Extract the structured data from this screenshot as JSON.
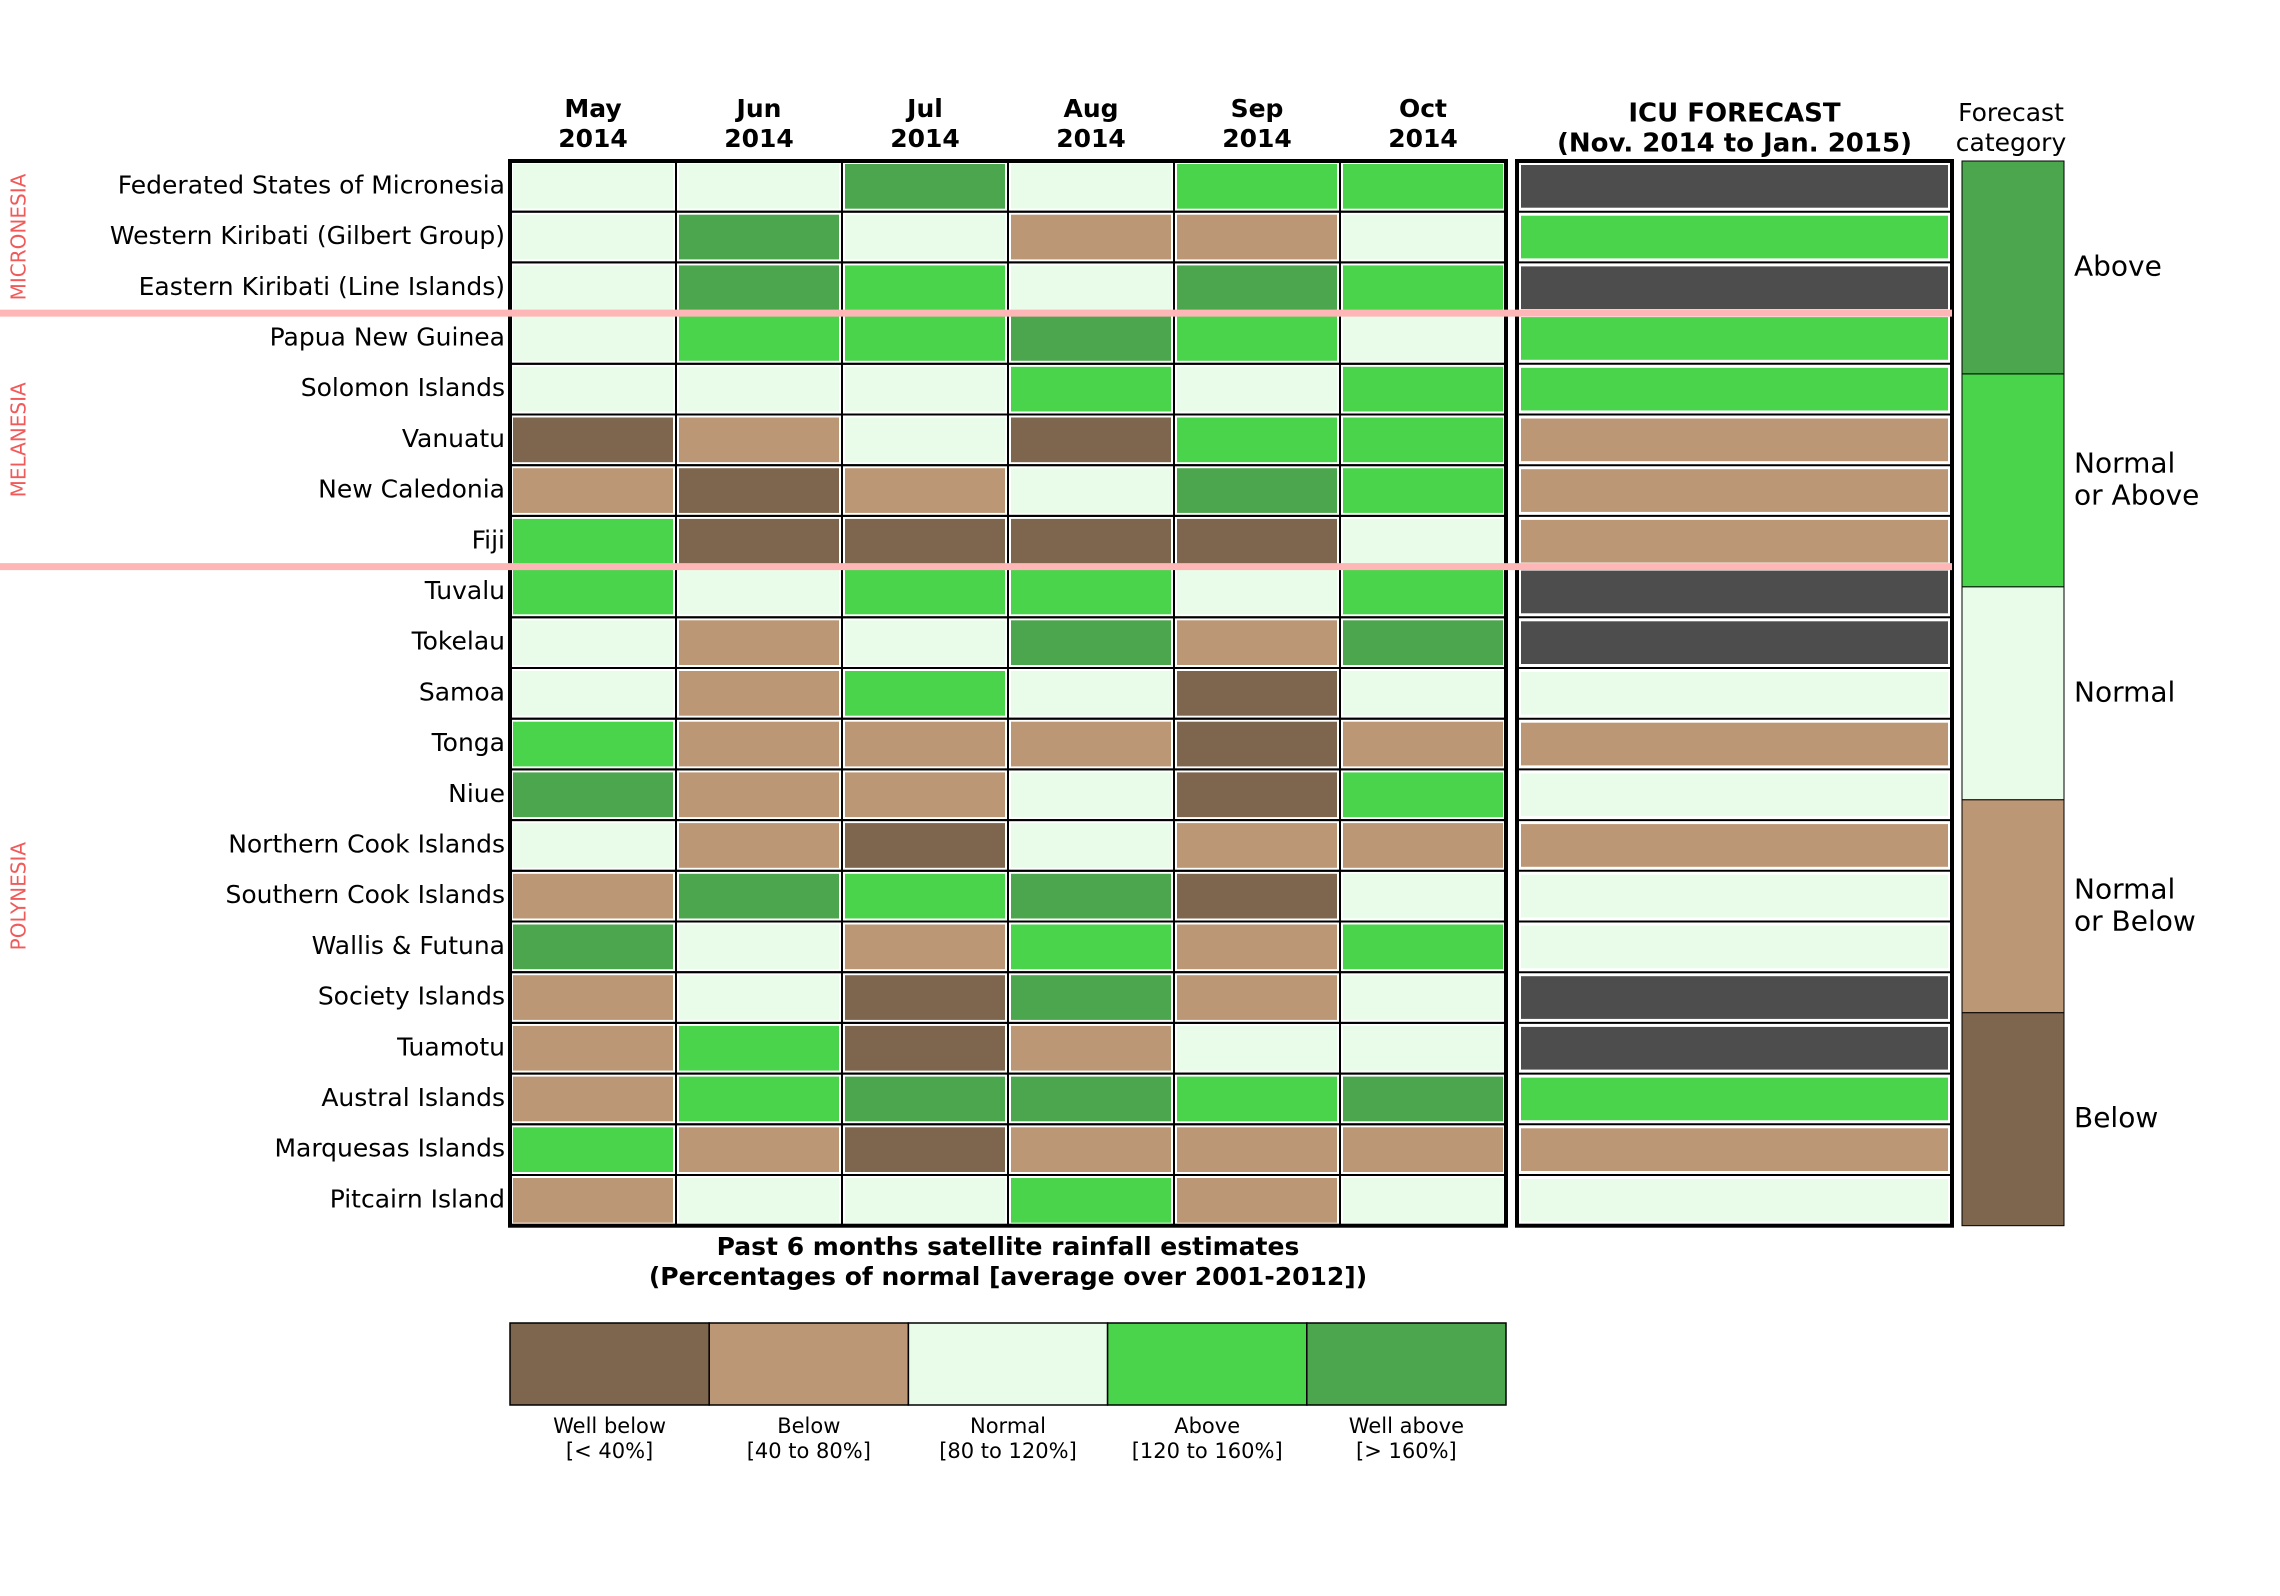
{
  "chart_data": {
    "type": "heatmap",
    "columns": [
      {
        "month": "May",
        "year": "2014"
      },
      {
        "month": "Jun",
        "year": "2014"
      },
      {
        "month": "Jul",
        "year": "2014"
      },
      {
        "month": "Aug",
        "year": "2014"
      },
      {
        "month": "Sep",
        "year": "2014"
      },
      {
        "month": "Oct",
        "year": "2014"
      }
    ],
    "forecast_title": [
      "ICU FORECAST",
      "(Nov. 2014 to Jan. 2015)"
    ],
    "forecast_category_title": [
      "Forecast",
      "category"
    ],
    "regions": [
      {
        "name": "MICRONESIA",
        "rows": [
          0,
          2
        ]
      },
      {
        "name": "MELANESIA",
        "rows": [
          3,
          7
        ]
      },
      {
        "name": "POLYNESIA",
        "rows": [
          8,
          20
        ]
      }
    ],
    "rows": [
      {
        "name": "Federated States of Micronesia",
        "values": [
          "normal",
          "normal",
          "well_above",
          "normal",
          "above",
          "above"
        ],
        "forecast": "none"
      },
      {
        "name": "Western Kiribati (Gilbert Group)",
        "values": [
          "normal",
          "well_above",
          "normal",
          "below",
          "below",
          "normal"
        ],
        "forecast": "normal_or_above"
      },
      {
        "name": "Eastern Kiribati (Line Islands)",
        "values": [
          "normal",
          "well_above",
          "above",
          "normal",
          "well_above",
          "above"
        ],
        "forecast": "none"
      },
      {
        "name": "Papua New Guinea",
        "values": [
          "normal",
          "above",
          "above",
          "well_above",
          "above",
          "normal"
        ],
        "forecast": "normal_or_above"
      },
      {
        "name": "Solomon Islands",
        "values": [
          "normal",
          "normal",
          "normal",
          "above",
          "normal",
          "above"
        ],
        "forecast": "normal_or_above"
      },
      {
        "name": "Vanuatu",
        "values": [
          "well_below",
          "below",
          "normal",
          "well_below",
          "above",
          "above"
        ],
        "forecast": "normal_or_below"
      },
      {
        "name": "New Caledonia",
        "values": [
          "below",
          "well_below",
          "below",
          "normal",
          "well_above",
          "above"
        ],
        "forecast": "normal_or_below"
      },
      {
        "name": "Fiji",
        "values": [
          "above",
          "well_below",
          "well_below",
          "well_below",
          "well_below",
          "normal"
        ],
        "forecast": "normal_or_below"
      },
      {
        "name": "Tuvalu",
        "values": [
          "above",
          "normal",
          "above",
          "above",
          "normal",
          "above"
        ],
        "forecast": "none"
      },
      {
        "name": "Tokelau",
        "values": [
          "normal",
          "below",
          "normal",
          "well_above",
          "below",
          "well_above"
        ],
        "forecast": "none"
      },
      {
        "name": "Samoa",
        "values": [
          "normal",
          "below",
          "above",
          "normal",
          "well_below",
          "normal"
        ],
        "forecast": "normal"
      },
      {
        "name": "Tonga",
        "values": [
          "above",
          "below",
          "below",
          "below",
          "well_below",
          "below"
        ],
        "forecast": "normal_or_below"
      },
      {
        "name": "Niue",
        "values": [
          "well_above",
          "below",
          "below",
          "normal",
          "well_below",
          "above"
        ],
        "forecast": "normal"
      },
      {
        "name": "Northern Cook Islands",
        "values": [
          "normal",
          "below",
          "well_below",
          "normal",
          "below",
          "below"
        ],
        "forecast": "normal_or_below"
      },
      {
        "name": "Southern Cook Islands",
        "values": [
          "below",
          "well_above",
          "above",
          "well_above",
          "well_below",
          "normal"
        ],
        "forecast": "normal"
      },
      {
        "name": "Wallis & Futuna",
        "values": [
          "well_above",
          "normal",
          "below",
          "above",
          "below",
          "above"
        ],
        "forecast": "normal"
      },
      {
        "name": "Society Islands",
        "values": [
          "below",
          "normal",
          "well_below",
          "well_above",
          "below",
          "normal"
        ],
        "forecast": "none"
      },
      {
        "name": "Tuamotu",
        "values": [
          "below",
          "above",
          "well_below",
          "below",
          "normal",
          "normal"
        ],
        "forecast": "none"
      },
      {
        "name": "Austral Islands",
        "values": [
          "below",
          "above",
          "well_above",
          "well_above",
          "above",
          "well_above"
        ],
        "forecast": "normal_or_above"
      },
      {
        "name": "Marquesas Islands",
        "values": [
          "above",
          "below",
          "well_below",
          "below",
          "below",
          "below"
        ],
        "forecast": "normal_or_below"
      },
      {
        "name": "Pitcairn Island",
        "values": [
          "below",
          "normal",
          "normal",
          "above",
          "below",
          "normal"
        ],
        "forecast": "normal"
      }
    ],
    "past_legend_title": [
      "Past 6 months satellite rainfall estimates",
      "(Percentages of normal [average over 2001-2012])"
    ],
    "past_legend": [
      {
        "key": "well_below",
        "label": "Well below",
        "range": "[< 40%]",
        "color": "#7e654d"
      },
      {
        "key": "below",
        "label": "Below",
        "range": "[40 to 80%]",
        "color": "#bc9775"
      },
      {
        "key": "normal",
        "label": "Normal",
        "range": "[80 to 120%]",
        "color": "#e9fce9"
      },
      {
        "key": "above",
        "label": "Above",
        "range": "[120 to 160%]",
        "color": "#4ad44c"
      },
      {
        "key": "well_above",
        "label": "Well above",
        "range": "[> 160%]",
        "color": "#4ca64e"
      }
    ],
    "forecast_legend": [
      {
        "key": "above",
        "label": [
          "Above"
        ],
        "color": "#4ca64e"
      },
      {
        "key": "normal_or_above",
        "label": [
          "Normal",
          " or Above"
        ],
        "color": "#4ad44c"
      },
      {
        "key": "normal",
        "label": [
          "Normal"
        ],
        "color": "#e9fce9"
      },
      {
        "key": "normal_or_below",
        "label": [
          "Normal",
          " or Below"
        ],
        "color": "#bc9775"
      },
      {
        "key": "below",
        "label": [
          "Below"
        ],
        "color": "#7e654d"
      }
    ],
    "forecast_colors": {
      "above": "#4ca64e",
      "normal_or_above": "#4ad44c",
      "normal": "#e9fce9",
      "normal_or_below": "#bc9775",
      "below": "#7e654d",
      "none": "#4d4d4d"
    },
    "region_divider_color": "#ffb6b6",
    "region_label_color": "#f05a5a"
  }
}
